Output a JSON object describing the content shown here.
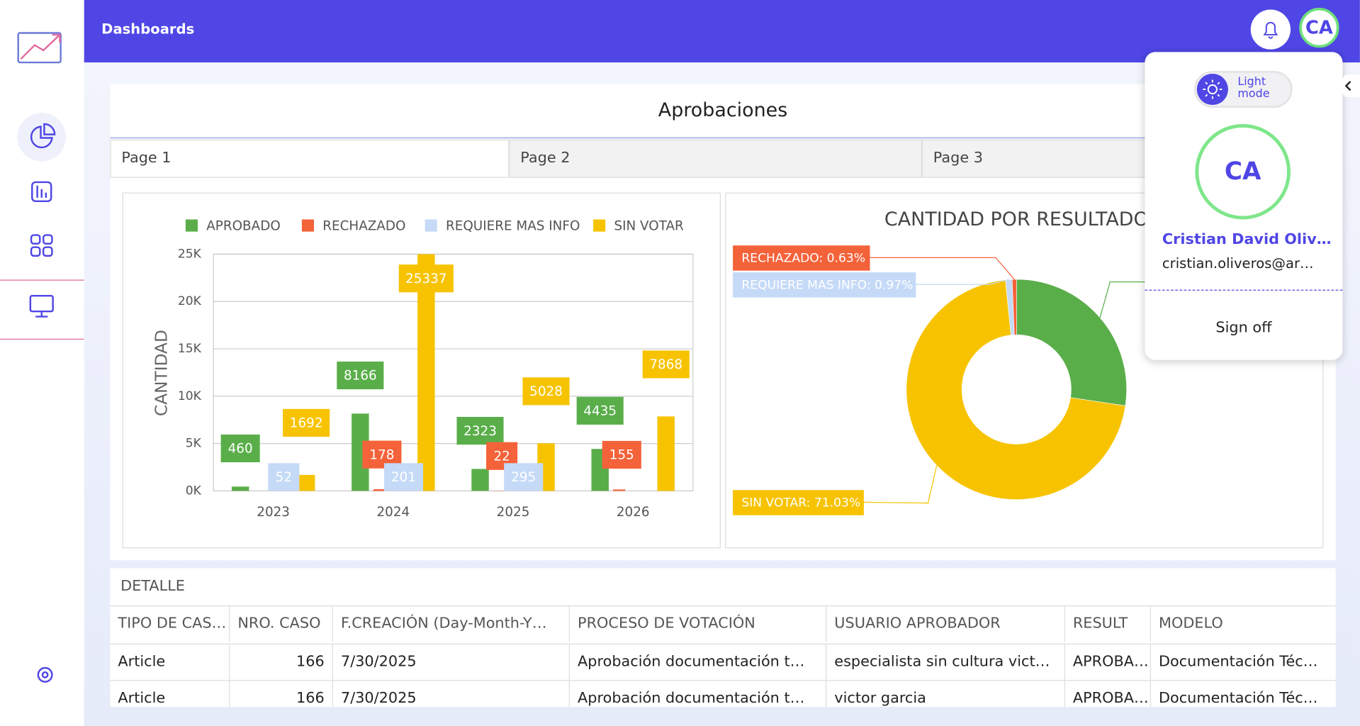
{
  "header": {
    "title": "Dashboards",
    "avatar": "CA"
  },
  "dashboard": {
    "title": "Aprobaciones",
    "tabs": [
      "Page 1",
      "Page 2",
      "Page 3"
    ]
  },
  "chart_data": [
    {
      "type": "bar",
      "y_label": "CANTIDAD",
      "categories": [
        "2023",
        "2024",
        "2025",
        "2026"
      ],
      "series": [
        {
          "name": "APROBADO",
          "color": "#5aae4a",
          "values": [
            460,
            8166,
            2323,
            4435
          ]
        },
        {
          "name": "RECHAZADO",
          "color": "#f4623a",
          "values": [
            null,
            178,
            22,
            155
          ]
        },
        {
          "name": "REQUIERE MAS INFO",
          "color": "#c5daf7",
          "values": [
            52,
            201,
            295,
            null
          ]
        },
        {
          "name": "SIN VOTAR",
          "color": "#f7c300",
          "values": [
            1692,
            25337,
            5028,
            7868
          ]
        }
      ],
      "ylim": [
        0,
        25000
      ],
      "yticks": [
        {
          "value": 0,
          "label": "0K"
        },
        {
          "value": 5000,
          "label": "5K"
        },
        {
          "value": 10000,
          "label": "10K"
        },
        {
          "value": 15000,
          "label": "15K"
        },
        {
          "value": 20000,
          "label": "20K"
        },
        {
          "value": 25000,
          "label": "25K"
        }
      ],
      "grid": true,
      "legend": "top"
    },
    {
      "type": "donut",
      "title": "CANTIDAD POR RESULTADO",
      "values": [
        27.37,
        71.03,
        0.97,
        0.63
      ],
      "value_labels": [
        null,
        "SIN VOTAR: 71.03%",
        "REQUIERE MAS INFO: 0.97%",
        "RECHAZADO: 0.63%"
      ],
      "colors": [
        "#5aae4a",
        "#f7c300",
        "#c5daf7",
        "#f4623a"
      ]
    }
  ],
  "table": {
    "title": "DETALLE",
    "columns": [
      "TIPO DE CAS…",
      "NRO. CASO",
      "F.CREACIÓN (Day-Month-Y…",
      "PROCESO DE VOTACIÓN",
      "USUARIO APROBADOR",
      "RESULT",
      "MODELO"
    ],
    "rows": [
      [
        "Article",
        "166",
        "7/30/2025",
        "Aprobación documentación t…",
        "especialista sin cultura vict…",
        "APROBA…",
        "Documentación Téc…"
      ],
      [
        "Article",
        "166",
        "7/30/2025",
        "Aprobación documentación t…",
        "victor garcia",
        "APROBA…",
        "Documentación Téc…"
      ]
    ]
  },
  "user_menu": {
    "mode_line1": "Light",
    "mode_line2": "mode",
    "initials": "CA",
    "name": "Cristian David Oliv…",
    "email": "cristian.oliveros@ar…",
    "sign_off": "Sign off"
  }
}
